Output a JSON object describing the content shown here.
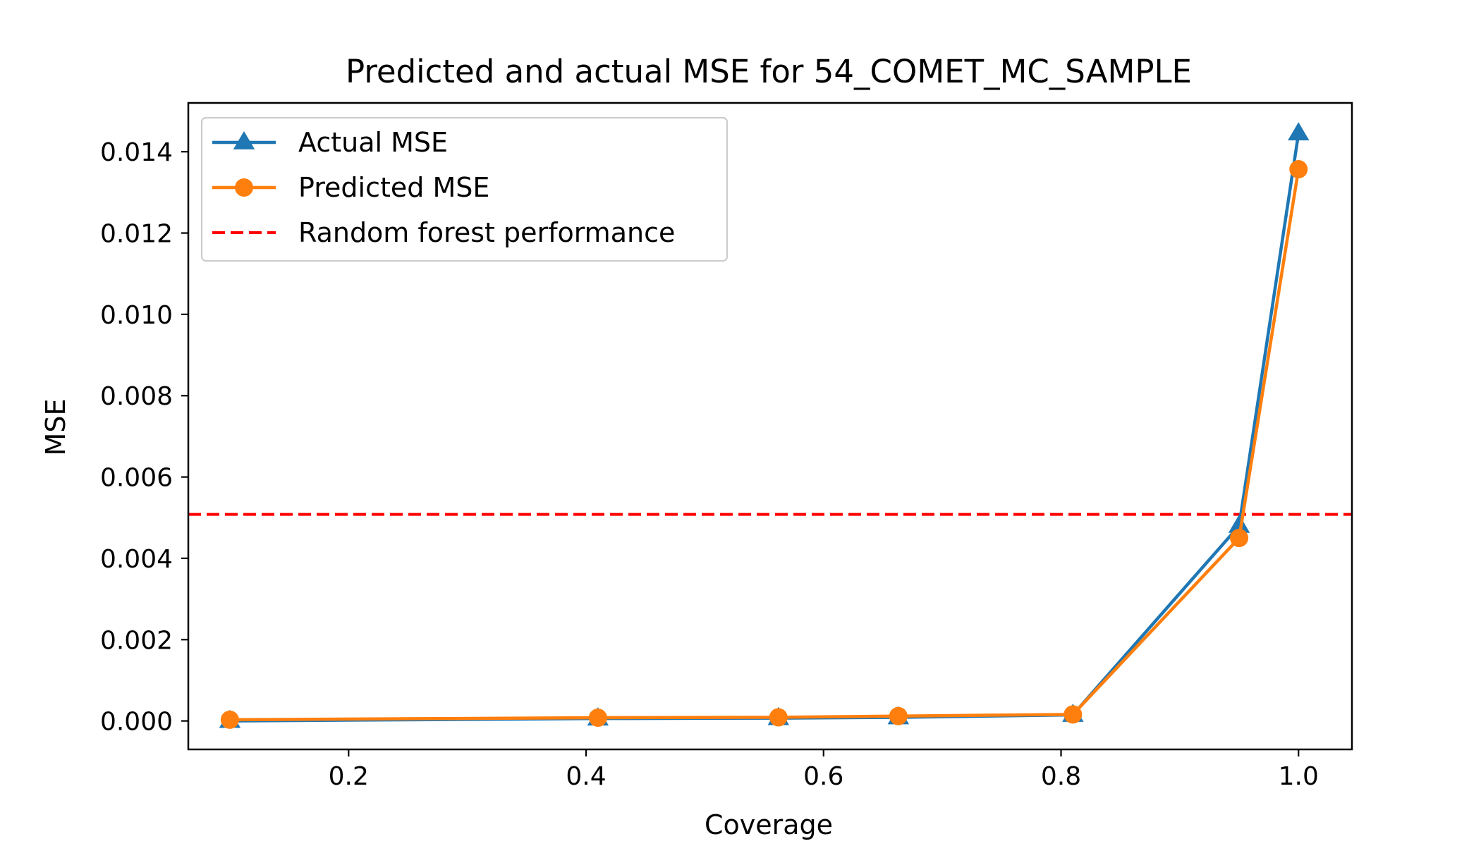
{
  "chart_data": {
    "type": "line",
    "title": "Predicted and actual MSE for 54_COMET_MC_SAMPLE",
    "xlabel": "Coverage",
    "ylabel": "MSE",
    "xlim": [
      0.065,
      1.045
    ],
    "ylim": [
      -0.0007,
      0.0152
    ],
    "xticks": [
      0.2,
      0.4,
      0.6,
      0.8,
      1.0
    ],
    "xtick_labels": [
      "0.2",
      "0.4",
      "0.6",
      "0.8",
      "1.0"
    ],
    "yticks": [
      0.0,
      0.002,
      0.004,
      0.006,
      0.008,
      0.01,
      0.012,
      0.014
    ],
    "ytick_labels": [
      "0.000",
      "0.002",
      "0.004",
      "0.006",
      "0.008",
      "0.010",
      "0.012",
      "0.014"
    ],
    "grid": false,
    "legend_position": "top-left",
    "series": [
      {
        "name": "Actual MSE",
        "color": "#1f77b4",
        "marker": "triangle",
        "x": [
          0.1,
          0.41,
          0.562,
          0.663,
          0.81,
          0.95,
          1.0
        ],
        "values": [
          0.0,
          6e-05,
          7e-05,
          9e-05,
          0.00015,
          0.0048,
          0.01445
        ]
      },
      {
        "name": "Predicted MSE",
        "color": "#ff7f0e",
        "marker": "circle",
        "x": [
          0.1,
          0.41,
          0.562,
          0.663,
          0.81,
          0.95,
          1.0
        ],
        "values": [
          3e-05,
          8e-05,
          9e-05,
          0.00012,
          0.00016,
          0.0045,
          0.01357
        ]
      }
    ],
    "reference_lines": [
      {
        "name": "Random forest performance",
        "orientation": "horizontal",
        "value": 0.00508,
        "color": "#ff0000",
        "style": "dashed"
      }
    ]
  }
}
